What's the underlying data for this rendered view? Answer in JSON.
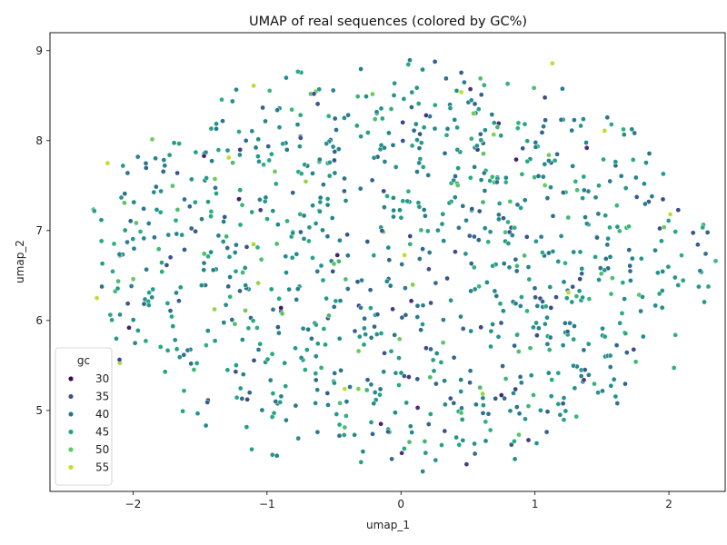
{
  "chart_data": {
    "type": "scatter",
    "title": "UMAP of real sequences (colored by GC%)",
    "xlabel": "umap_1",
    "ylabel": "umap_2",
    "xlim": [
      -2.62,
      2.42
    ],
    "ylim": [
      4.1,
      9.2
    ],
    "xticks": [
      -2,
      -1,
      0,
      1,
      2
    ],
    "yticks": [
      5,
      6,
      7,
      8,
      9
    ],
    "grid": false,
    "color_variable": "gc",
    "colormap": "viridis",
    "color_range": [
      27,
      58
    ],
    "legend": {
      "title": "gc",
      "placement": "lower-left",
      "entries": [
        {
          "label": "30",
          "value": 30,
          "color": "#440154"
        },
        {
          "label": "35",
          "value": 35,
          "color": "#3b528b"
        },
        {
          "label": "40",
          "value": 40,
          "color": "#2c728e"
        },
        {
          "label": "45",
          "value": 45,
          "color": "#21a585"
        },
        {
          "label": "50",
          "value": 50,
          "color": "#5ec962"
        },
        {
          "label": "55",
          "value": 55,
          "color": "#c2df23"
        }
      ]
    },
    "points": {
      "count": 1000,
      "x_center": 0.0,
      "y_center": 6.6,
      "x_extent": [
        -2.45,
        2.35
      ],
      "y_extent": [
        4.32,
        8.92
      ],
      "gc_mean": 42,
      "gc_range": [
        29,
        57
      ]
    },
    "notable_points": [
      {
        "x": 1.13,
        "y": 8.86,
        "gc": 55
      },
      {
        "x": -1.1,
        "y": 8.61,
        "gc": 55
      },
      {
        "x": 0.45,
        "y": 8.54,
        "gc": 55
      },
      {
        "x": -2.19,
        "y": 7.75,
        "gc": 55
      },
      {
        "x": -2.27,
        "y": 6.25,
        "gc": 55
      },
      {
        "x": 2.01,
        "y": 7.18,
        "gc": 55
      },
      {
        "x": 0.86,
        "y": 7.79,
        "gc": 30
      },
      {
        "x": -0.15,
        "y": 4.85,
        "gc": 30
      },
      {
        "x": 0.75,
        "y": 5.17,
        "gc": 30
      },
      {
        "x": -2.03,
        "y": 5.92,
        "gc": 30
      },
      {
        "x": -1.47,
        "y": 7.83,
        "gc": 30
      },
      {
        "x": -1.21,
        "y": 7.35,
        "gc": 30
      },
      {
        "x": 0.88,
        "y": 4.73,
        "gc": 50
      },
      {
        "x": -0.5,
        "y": 6.63,
        "gc": 50
      },
      {
        "x": 1.52,
        "y": 8.11,
        "gc": 55
      },
      {
        "x": 1.25,
        "y": 6.31,
        "gc": 55
      },
      {
        "x": -0.42,
        "y": 5.24,
        "gc": 55
      }
    ]
  }
}
